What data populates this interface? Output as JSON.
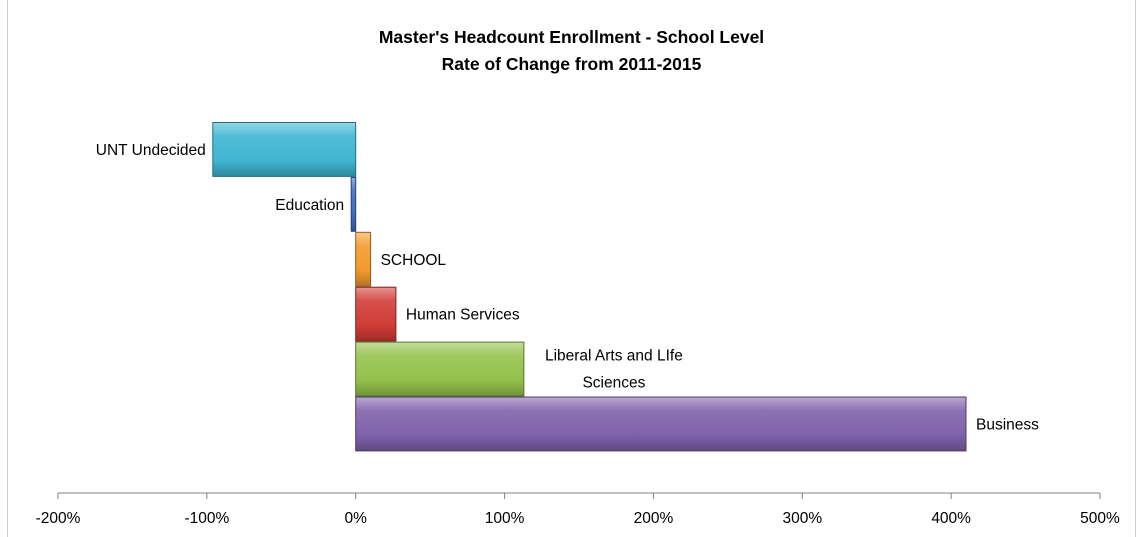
{
  "chart_data": {
    "type": "bar",
    "orientation": "horizontal",
    "title": "Master's Headcount Enrollment - School Level",
    "subtitle": "Rate of Change from 2011-2015",
    "categories": [
      "UNT Undecided",
      "Education",
      "SCHOOL",
      "Human Services",
      "Liberal Arts and LIfe Sciences",
      "Business"
    ],
    "values": [
      -96,
      -3,
      10,
      27,
      113,
      410
    ],
    "unit": "%",
    "xlim": [
      -200,
      500
    ],
    "x_ticks": [
      "-200%",
      "-100%",
      "0%",
      "100%",
      "200%",
      "300%",
      "400%",
      "500%"
    ],
    "colors": [
      "#3fb6d3",
      "#3b6fc0",
      "#f39a2e",
      "#d13c37",
      "#94c24c",
      "#8062ab"
    ],
    "grid": false,
    "legend": "none"
  }
}
